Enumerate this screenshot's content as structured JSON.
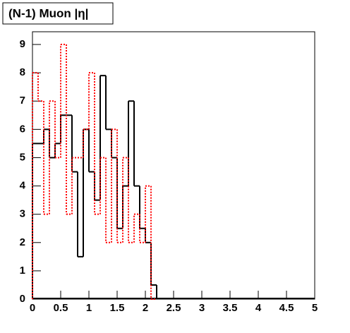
{
  "chart_data": {
    "type": "histogram",
    "title": "(N-1) Muon |η|",
    "bins": [
      0,
      0.1,
      0.2,
      0.3,
      0.4,
      0.5,
      0.6,
      0.7,
      0.8,
      0.9,
      1.0,
      1.1,
      1.2,
      1.3,
      1.4,
      1.5,
      1.6,
      1.7,
      1.8,
      1.9,
      2.0,
      2.1,
      2.2
    ],
    "series": [
      {
        "color": "#000000",
        "dashed": false,
        "values": [
          5.5,
          5.5,
          6,
          5,
          5.5,
          6.5,
          6.5,
          4.5,
          1.5,
          6,
          4.5,
          3.5,
          7.9,
          6,
          5,
          2.5,
          4,
          7,
          4,
          2.5,
          2,
          0.5
        ]
      },
      {
        "color": "#ff0000",
        "dashed": true,
        "values": [
          8,
          7,
          3,
          7,
          5,
          9,
          3,
          5,
          5,
          6,
          8,
          3,
          5,
          2,
          6,
          2,
          5,
          2,
          3,
          2,
          4,
          0
        ]
      }
    ],
    "xlim": [
      0,
      5
    ],
    "xticks": [
      0,
      0.5,
      1,
      1.5,
      2,
      2.5,
      3,
      3.5,
      4,
      4.5,
      5
    ],
    "ylim": [
      0,
      9.45
    ],
    "yticks": [
      0,
      1,
      2,
      3,
      4,
      5,
      6,
      7,
      8,
      9
    ]
  }
}
